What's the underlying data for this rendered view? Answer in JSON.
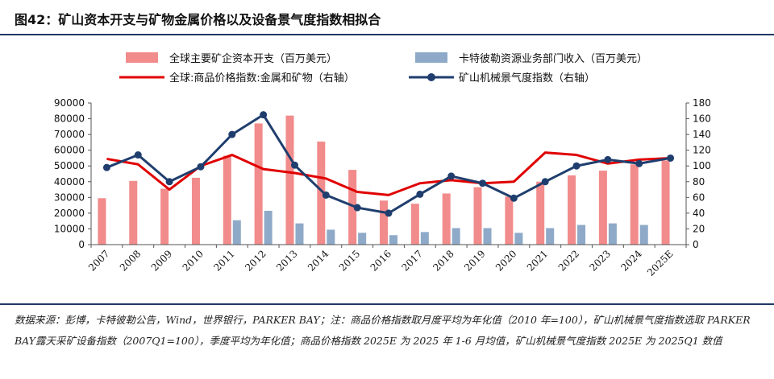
{
  "title": "图42：矿山资本开支与矿物金属价格以及设备景气度指数相拟合",
  "source": "数据来源：彭博，卡特彼勒公告，Wind，世界银行，PARKER BAY；注：商品价格指数取月度平均为年化值（2010 年=100），矿山机械景气度指数选取 PARKER BAY露天采矿设备指数（2007Q1=100），季度平均为年化值；商品价格指数 2025E 为 2025 年 1-6 月均值，矿山机械景气度指数 2025E 为 2025Q1 数值",
  "colors": {
    "capex_bar": "#f28b8b",
    "cat_bar": "#8eaac8",
    "commodity_line": "#e00000",
    "equipment_line": "#1f3e6e",
    "rule": "#1f3864"
  },
  "chart_data": {
    "type": "bar",
    "categories": [
      "2007",
      "2008",
      "2009",
      "2010",
      "2011",
      "2012",
      "2013",
      "2014",
      "2015",
      "2016",
      "2017",
      "2018",
      "2019",
      "2020",
      "2021",
      "2022",
      "2023",
      "2024",
      "2025E"
    ],
    "ylim": [
      0,
      90000
    ],
    "y_ticks": [
      "0",
      "10000",
      "20000",
      "30000",
      "40000",
      "50000",
      "60000",
      "70000",
      "80000",
      "90000"
    ],
    "y2lim": [
      0,
      180
    ],
    "y2_ticks": [
      "0",
      "20",
      "40",
      "60",
      "80",
      "100",
      "120",
      "140",
      "160",
      "180"
    ],
    "legend_placement": "top",
    "series": [
      {
        "name": "全球主要矿企资本开支（百万美元）",
        "kind": "bar",
        "axis": "left",
        "values": [
          29500,
          40500,
          35500,
          42500,
          56500,
          77000,
          82000,
          65500,
          47500,
          28000,
          26000,
          32500,
          36500,
          30500,
          40000,
          44000,
          47000,
          51000,
          53500
        ]
      },
      {
        "name": "卡特彼勒资源业务部门收入（百万美元）",
        "kind": "bar",
        "axis": "left",
        "values": [
          null,
          null,
          null,
          null,
          15500,
          21500,
          13500,
          9500,
          7500,
          6000,
          8000,
          10500,
          10500,
          7500,
          10500,
          12500,
          13500,
          12500,
          null
        ]
      },
      {
        "name": "全球:商品价格指数:金属和矿物（右轴）",
        "kind": "line",
        "axis": "right",
        "values": [
          109,
          102,
          70,
          100,
          114,
          96,
          91,
          84,
          67,
          63,
          78,
          82,
          78,
          80,
          117,
          114,
          103,
          108,
          110
        ]
      },
      {
        "name": "矿山机械景气度指数（右轴）",
        "kind": "line-marker",
        "axis": "right",
        "values": [
          98,
          114,
          80,
          99,
          140,
          165,
          101,
          63,
          47,
          40,
          64,
          87,
          78,
          59,
          80,
          100,
          108,
          103,
          110
        ]
      }
    ]
  }
}
